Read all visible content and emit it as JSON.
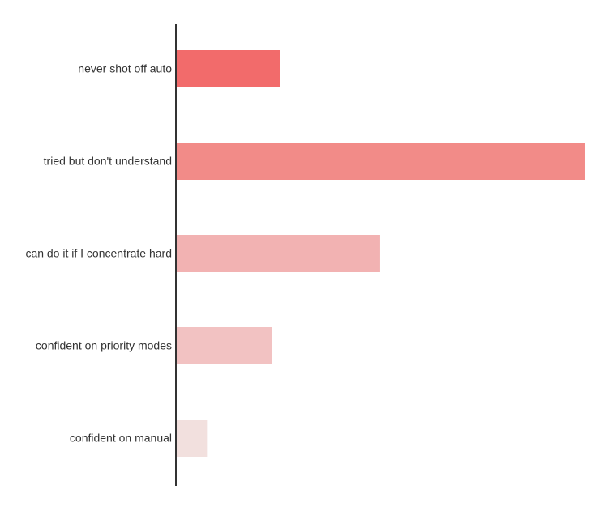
{
  "chart_data": {
    "type": "bar",
    "orientation": "horizontal",
    "categories": [
      "never shot off auto",
      "tried but don't understand",
      "can do it if I concentrate hard",
      "confident on priority modes",
      "confident on manual"
    ],
    "values": [
      12.3,
      48.6,
      24.2,
      11.3,
      3.6
    ],
    "colors": [
      "#f26b6b",
      "#f28b88",
      "#f2b2b2",
      "#f2c2c2",
      "#f2e0de"
    ],
    "xlim": [
      0,
      50
    ]
  }
}
